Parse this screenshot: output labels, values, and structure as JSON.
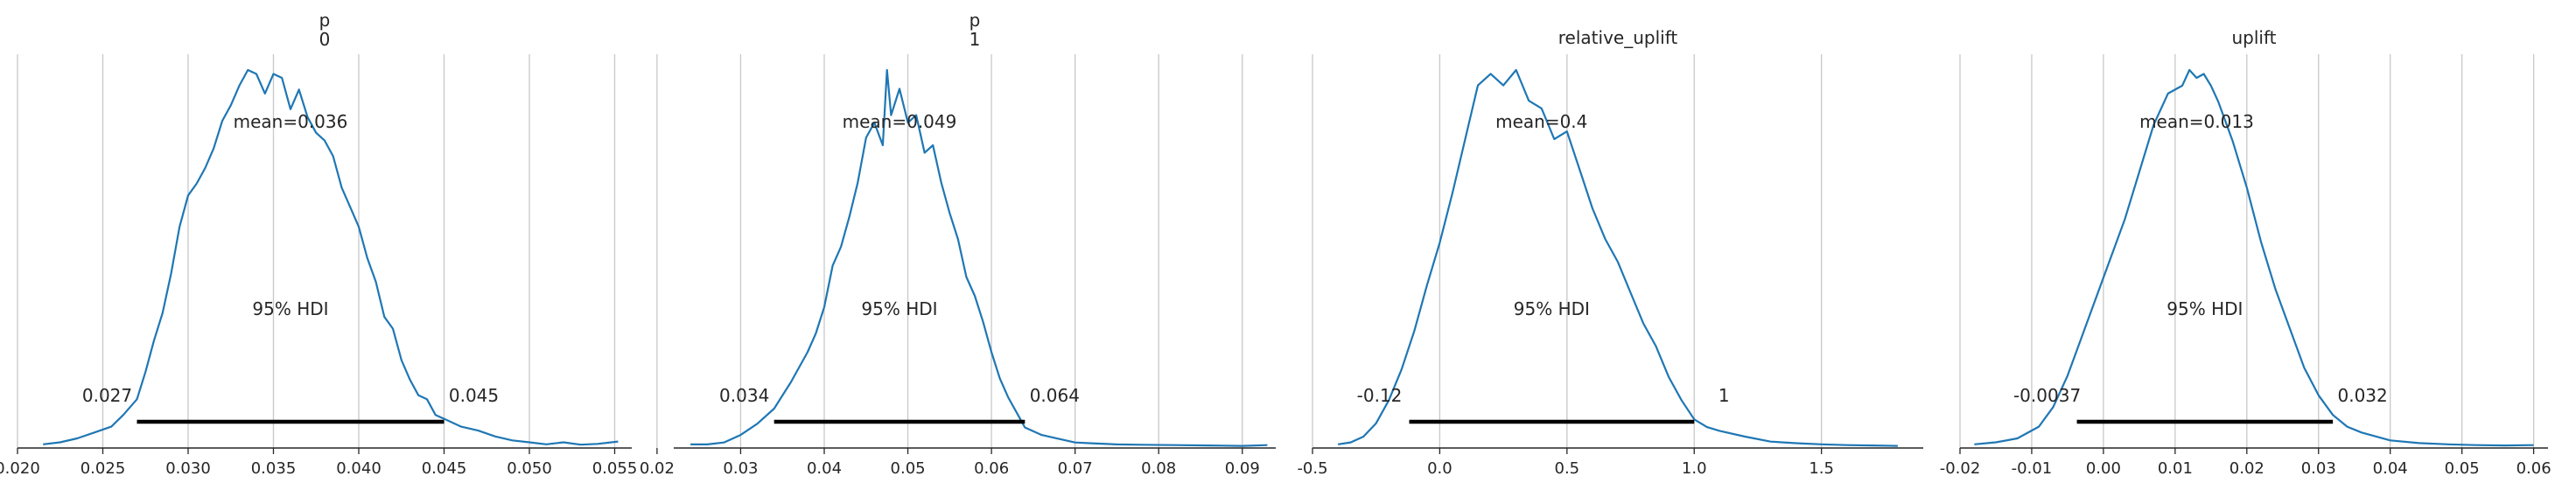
{
  "chart_data": [
    {
      "type": "line",
      "title": "p\n0",
      "xlim": [
        0.02,
        0.056
      ],
      "xticks": [
        "0.020",
        "0.025",
        "0.030",
        "0.035",
        "0.040",
        "0.045",
        "0.050",
        "0.055"
      ],
      "grid": true,
      "mean_label": "mean=0.036",
      "hdi_label": "95% HDI",
      "hdi": [
        0.027,
        0.045
      ],
      "hdi_low_label": "0.027",
      "hdi_high_label": "0.045",
      "x": [
        0.0215,
        0.0225,
        0.0235,
        0.0245,
        0.0255,
        0.0262,
        0.027,
        0.0275,
        0.028,
        0.0285,
        0.029,
        0.0295,
        0.03,
        0.0305,
        0.031,
        0.0315,
        0.032,
        0.0325,
        0.033,
        0.0335,
        0.034,
        0.0345,
        0.035,
        0.0355,
        0.036,
        0.0365,
        0.037,
        0.0375,
        0.038,
        0.0385,
        0.039,
        0.0395,
        0.04,
        0.0405,
        0.041,
        0.0415,
        0.042,
        0.0425,
        0.043,
        0.0435,
        0.044,
        0.0445,
        0.045,
        0.046,
        0.047,
        0.048,
        0.049,
        0.05,
        0.051,
        0.052,
        0.053,
        0.054,
        0.0552
      ],
      "y": [
        0.005,
        0.01,
        0.02,
        0.035,
        0.05,
        0.08,
        0.12,
        0.19,
        0.27,
        0.34,
        0.44,
        0.56,
        0.64,
        0.67,
        0.71,
        0.76,
        0.83,
        0.87,
        0.92,
        0.96,
        0.95,
        0.9,
        0.95,
        0.94,
        0.86,
        0.91,
        0.84,
        0.8,
        0.78,
        0.74,
        0.66,
        0.61,
        0.56,
        0.48,
        0.42,
        0.33,
        0.3,
        0.22,
        0.17,
        0.13,
        0.12,
        0.08,
        0.07,
        0.05,
        0.04,
        0.025,
        0.015,
        0.01,
        0.005,
        0.01,
        0.004,
        0.006,
        0.012
      ]
    },
    {
      "type": "line",
      "title": "p\n1",
      "xlim": [
        0.022,
        0.094
      ],
      "xticks": [
        "0.02",
        "0.03",
        "0.04",
        "0.05",
        "0.06",
        "0.07",
        "0.08",
        "0.09"
      ],
      "grid": true,
      "mean_label": "mean=0.049",
      "hdi_label": "95% HDI",
      "hdi": [
        0.034,
        0.064
      ],
      "hdi_low_label": "0.034",
      "hdi_high_label": "0.064",
      "x": [
        0.024,
        0.026,
        0.028,
        0.03,
        0.032,
        0.034,
        0.036,
        0.038,
        0.039,
        0.04,
        0.041,
        0.042,
        0.043,
        0.044,
        0.045,
        0.046,
        0.047,
        0.0475,
        0.048,
        0.049,
        0.05,
        0.051,
        0.052,
        0.053,
        0.054,
        0.055,
        0.056,
        0.057,
        0.058,
        0.059,
        0.06,
        0.061,
        0.062,
        0.063,
        0.064,
        0.066,
        0.068,
        0.07,
        0.072,
        0.075,
        0.078,
        0.082,
        0.086,
        0.09,
        0.093
      ],
      "y": [
        0.005,
        0.005,
        0.01,
        0.03,
        0.06,
        0.1,
        0.17,
        0.25,
        0.3,
        0.37,
        0.48,
        0.53,
        0.61,
        0.7,
        0.82,
        0.86,
        0.8,
        1.0,
        0.88,
        0.95,
        0.86,
        0.88,
        0.78,
        0.8,
        0.7,
        0.62,
        0.55,
        0.45,
        0.4,
        0.33,
        0.25,
        0.18,
        0.13,
        0.09,
        0.05,
        0.03,
        0.02,
        0.01,
        0.008,
        0.005,
        0.004,
        0.003,
        0.002,
        0.001,
        0.003
      ]
    },
    {
      "type": "line",
      "title": "relative_uplift",
      "xlim": [
        -0.5,
        1.9
      ],
      "xticks": [
        "-0.5",
        "0.0",
        "0.5",
        "1.0",
        "1.5"
      ],
      "grid": true,
      "mean_label": "mean=0.4",
      "hdi_label": "95% HDI",
      "hdi": [
        -0.12,
        1.0
      ],
      "hdi_low_label": "-0.12",
      "hdi_high_label": "1",
      "x": [
        -0.4,
        -0.35,
        -0.3,
        -0.25,
        -0.2,
        -0.15,
        -0.1,
        -0.05,
        0.0,
        0.05,
        0.1,
        0.15,
        0.2,
        0.25,
        0.3,
        0.35,
        0.4,
        0.45,
        0.5,
        0.55,
        0.6,
        0.65,
        0.7,
        0.75,
        0.8,
        0.85,
        0.9,
        0.95,
        1.0,
        1.05,
        1.1,
        1.2,
        1.3,
        1.4,
        1.5,
        1.6,
        1.7,
        1.8
      ],
      "y": [
        0.005,
        0.01,
        0.025,
        0.06,
        0.12,
        0.2,
        0.3,
        0.42,
        0.53,
        0.66,
        0.8,
        0.94,
        0.97,
        0.94,
        0.98,
        0.9,
        0.88,
        0.8,
        0.82,
        0.72,
        0.62,
        0.54,
        0.48,
        0.4,
        0.32,
        0.26,
        0.18,
        0.12,
        0.07,
        0.05,
        0.04,
        0.025,
        0.012,
        0.008,
        0.005,
        0.003,
        0.002,
        0.001
      ]
    },
    {
      "type": "line",
      "title": "uplift",
      "xlim": [
        -0.02,
        0.062
      ],
      "xticks": [
        "-0.02",
        "-0.01",
        "0.00",
        "0.01",
        "0.02",
        "0.03",
        "0.04",
        "0.05",
        "0.06"
      ],
      "grid": true,
      "mean_label": "mean=0.013",
      "hdi_label": "95% HDI",
      "hdi": [
        -0.0037,
        0.032
      ],
      "hdi_low_label": "-0.0037",
      "hdi_high_label": "0.032",
      "x": [
        -0.018,
        -0.015,
        -0.012,
        -0.009,
        -0.007,
        -0.005,
        -0.003,
        -0.001,
        0.001,
        0.003,
        0.005,
        0.007,
        0.009,
        0.011,
        0.012,
        0.013,
        0.014,
        0.015,
        0.016,
        0.018,
        0.02,
        0.022,
        0.024,
        0.026,
        0.028,
        0.03,
        0.032,
        0.034,
        0.036,
        0.038,
        0.04,
        0.044,
        0.048,
        0.052,
        0.056,
        0.06
      ],
      "y": [
        0.005,
        0.01,
        0.02,
        0.05,
        0.1,
        0.18,
        0.28,
        0.38,
        0.48,
        0.58,
        0.7,
        0.82,
        0.9,
        0.92,
        0.96,
        0.94,
        0.95,
        0.92,
        0.88,
        0.78,
        0.66,
        0.52,
        0.4,
        0.3,
        0.2,
        0.13,
        0.08,
        0.05,
        0.035,
        0.025,
        0.015,
        0.008,
        0.005,
        0.003,
        0.002,
        0.003
      ]
    }
  ],
  "colors": {
    "line": "#1f77b4",
    "hdi_bar": "#000000",
    "grid": "#c8c8c8",
    "axis": "#262626"
  }
}
